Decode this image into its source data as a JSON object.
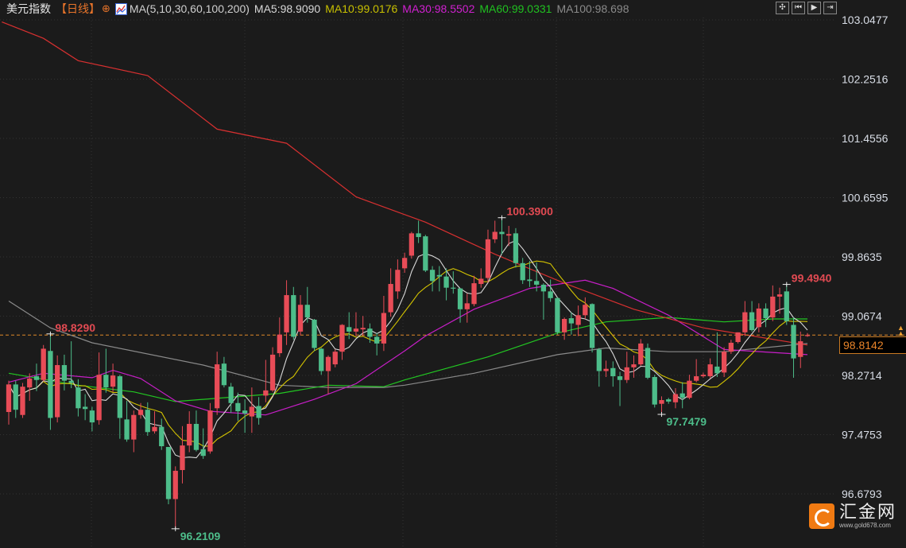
{
  "header": {
    "title": "美元指数",
    "period": "【日线】",
    "add_icon": "circle-plus-icon",
    "ma_icon": "line-chart-icon",
    "ma_params": "MA(5,10,30,60,100,200)",
    "ma5": "MA5:98.9090",
    "ma10": "MA10:99.0176",
    "ma30": "MA30:98.5502",
    "ma60": "MA60:99.0331",
    "ma100": "MA100:98.698"
  },
  "toolbar": [
    {
      "icon": "crosshair-icon",
      "glyph": "✣"
    },
    {
      "icon": "step-back-icon",
      "glyph": "⏮"
    },
    {
      "icon": "play-icon",
      "glyph": "▶"
    },
    {
      "icon": "exit-icon",
      "glyph": "⇥"
    }
  ],
  "current_price": "98.8142",
  "logo": {
    "name": "汇金网",
    "url": "www.gold678.com"
  },
  "colors": {
    "background": "#1b1b1b",
    "up": "#e84c57",
    "down": "#4dbd8a",
    "ma5": "#d8d8d8",
    "ma10": "#d4c400",
    "ma30": "#c81ec8",
    "ma60": "#22c722",
    "ma100": "#8a8a8a",
    "ma200": "#d83030",
    "current_line": "#e08a2a",
    "axis_text": "#d8dde6"
  },
  "chart_data": {
    "type": "candlestick",
    "title": "",
    "ylim": [
      96.1,
      103.1
    ],
    "grid": true,
    "y_ticks": [
      "103.0477",
      "102.2516",
      "101.4556",
      "100.6595",
      "99.8635",
      "99.0674",
      "98.2714",
      "97.4753",
      "96.6793"
    ],
    "current_value": 98.8142,
    "fields": [
      "open",
      "high",
      "low",
      "close"
    ],
    "candles": [
      [
        97.78,
        98.2,
        97.61,
        98.15
      ],
      [
        98.15,
        98.2,
        97.7,
        97.81
      ],
      [
        97.74,
        98.17,
        97.7,
        98.12
      ],
      [
        98.11,
        98.3,
        97.93,
        98.23
      ],
      [
        98.26,
        98.43,
        98.06,
        98.21
      ],
      [
        98.21,
        98.68,
        98.19,
        98.63
      ],
      [
        98.6,
        98.83,
        97.54,
        97.7
      ],
      [
        97.71,
        98.54,
        97.64,
        98.41
      ],
      [
        98.41,
        98.55,
        98.07,
        98.2
      ],
      [
        98.2,
        98.73,
        98.1,
        98.17
      ],
      [
        98.11,
        98.22,
        97.72,
        97.83
      ],
      [
        97.85,
        98.02,
        97.67,
        97.82
      ],
      [
        97.8,
        97.85,
        97.52,
        97.64
      ],
      [
        97.67,
        98.58,
        97.61,
        98.28
      ],
      [
        98.28,
        98.63,
        98.04,
        98.11
      ],
      [
        98.12,
        98.43,
        98.05,
        98.27
      ],
      [
        98.26,
        98.28,
        97.42,
        97.7
      ],
      [
        97.68,
        97.93,
        97.38,
        97.41
      ],
      [
        97.41,
        97.8,
        97.24,
        97.74
      ],
      [
        97.74,
        97.9,
        97.69,
        97.81
      ],
      [
        97.81,
        97.91,
        97.46,
        97.51
      ],
      [
        97.52,
        97.79,
        97.49,
        97.58
      ],
      [
        97.58,
        97.69,
        97.27,
        97.32
      ],
      [
        97.31,
        97.31,
        96.54,
        96.61
      ],
      [
        96.61,
        97.05,
        96.21,
        96.99
      ],
      [
        97.0,
        97.59,
        96.82,
        97.33
      ],
      [
        97.33,
        97.79,
        97.24,
        97.62
      ],
      [
        97.62,
        97.8,
        97.25,
        97.27
      ],
      [
        97.28,
        97.56,
        97.15,
        97.19
      ],
      [
        97.25,
        97.9,
        97.22,
        97.8
      ],
      [
        97.83,
        98.59,
        97.74,
        98.42
      ],
      [
        98.43,
        98.52,
        98.11,
        98.14
      ],
      [
        98.12,
        98.17,
        97.77,
        97.9
      ],
      [
        97.9,
        98.04,
        97.66,
        97.79
      ],
      [
        97.8,
        97.95,
        97.5,
        97.76
      ],
      [
        97.72,
        98.11,
        97.5,
        97.85
      ],
      [
        97.86,
        97.98,
        97.61,
        97.7
      ],
      [
        98.0,
        98.48,
        97.91,
        98.07
      ],
      [
        98.07,
        98.65,
        98.05,
        98.55
      ],
      [
        98.57,
        99.05,
        98.52,
        98.82
      ],
      [
        98.85,
        99.55,
        98.68,
        99.35
      ],
      [
        99.35,
        99.46,
        98.75,
        98.79
      ],
      [
        98.86,
        99.35,
        98.81,
        99.22
      ],
      [
        99.22,
        99.46,
        98.98,
        99.05
      ],
      [
        99.02,
        99.03,
        98.6,
        98.64
      ],
      [
        98.63,
        98.64,
        98.28,
        98.33
      ],
      [
        98.33,
        98.54,
        98.02,
        98.52
      ],
      [
        98.42,
        98.62,
        98.38,
        98.59
      ],
      [
        98.59,
        98.96,
        98.48,
        98.95
      ],
      [
        98.92,
        99.12,
        98.76,
        98.86
      ],
      [
        98.86,
        99.12,
        98.8,
        98.9
      ],
      [
        98.89,
        99.07,
        98.8,
        98.91
      ],
      [
        98.9,
        98.97,
        98.71,
        98.79
      ],
      [
        98.79,
        98.84,
        98.54,
        98.7
      ],
      [
        98.7,
        99.34,
        98.6,
        99.11
      ],
      [
        99.12,
        99.71,
        99.06,
        99.5
      ],
      [
        99.4,
        99.83,
        99.3,
        99.69
      ],
      [
        99.71,
        99.92,
        99.65,
        99.85
      ],
      [
        99.88,
        100.2,
        99.84,
        100.18
      ],
      [
        100.18,
        100.35,
        100.05,
        100.13
      ],
      [
        100.14,
        100.16,
        99.66,
        99.68
      ],
      [
        99.69,
        99.74,
        99.4,
        99.54
      ],
      [
        99.62,
        99.74,
        99.4,
        99.6
      ],
      [
        99.6,
        99.71,
        99.28,
        99.45
      ],
      [
        99.45,
        99.67,
        99.37,
        99.44
      ],
      [
        99.44,
        99.44,
        98.98,
        99.16
      ],
      [
        99.16,
        99.37,
        98.98,
        99.24
      ],
      [
        99.23,
        99.61,
        99.2,
        99.51
      ],
      [
        99.5,
        99.71,
        99.45,
        99.57
      ],
      [
        99.58,
        100.23,
        99.52,
        100.1
      ],
      [
        100.1,
        100.35,
        100.05,
        100.2
      ],
      [
        100.2,
        100.39,
        99.9,
        100.17
      ],
      [
        100.15,
        100.28,
        100.01,
        100.17
      ],
      [
        100.18,
        100.25,
        99.72,
        99.78
      ],
      [
        99.78,
        99.85,
        99.5,
        99.55
      ],
      [
        99.56,
        99.81,
        99.46,
        99.54
      ],
      [
        99.54,
        99.79,
        99.4,
        99.49
      ],
      [
        99.49,
        99.51,
        99.02,
        99.4
      ],
      [
        99.4,
        99.56,
        99.26,
        99.31
      ],
      [
        99.31,
        99.32,
        98.82,
        98.85
      ],
      [
        98.85,
        99.05,
        98.75,
        99.03
      ],
      [
        99.04,
        99.12,
        98.82,
        98.97
      ],
      [
        98.95,
        99.21,
        98.8,
        99.08
      ],
      [
        99.08,
        99.32,
        99.03,
        99.22
      ],
      [
        99.23,
        99.24,
        98.58,
        98.64
      ],
      [
        98.62,
        98.64,
        98.12,
        98.33
      ],
      [
        98.33,
        98.47,
        98.25,
        98.36
      ],
      [
        98.37,
        98.46,
        98.12,
        98.26
      ],
      [
        98.26,
        98.32,
        97.86,
        98.21
      ],
      [
        98.21,
        98.59,
        98.17,
        98.38
      ],
      [
        98.38,
        98.54,
        98.24,
        98.42
      ],
      [
        98.42,
        98.76,
        98.4,
        98.7
      ],
      [
        98.64,
        98.7,
        98.22,
        98.24
      ],
      [
        98.25,
        98.28,
        97.84,
        97.88
      ],
      [
        97.89,
        97.99,
        97.7479,
        97.94
      ],
      [
        97.95,
        97.97,
        97.89,
        97.92
      ],
      [
        97.91,
        98.1,
        97.83,
        98.02
      ],
      [
        98.03,
        98.18,
        97.83,
        97.97
      ],
      [
        97.97,
        98.28,
        97.95,
        98.2
      ],
      [
        98.2,
        98.49,
        98.18,
        98.26
      ],
      [
        98.26,
        98.31,
        98.24,
        98.28
      ],
      [
        98.26,
        98.5,
        98.23,
        98.42
      ],
      [
        98.39,
        98.85,
        98.25,
        98.3
      ],
      [
        98.31,
        98.65,
        98.25,
        98.59
      ],
      [
        98.59,
        98.75,
        98.56,
        98.71
      ],
      [
        98.72,
        98.85,
        98.7,
        98.85
      ],
      [
        98.85,
        99.27,
        98.8,
        99.12
      ],
      [
        99.12,
        99.27,
        98.86,
        98.88
      ],
      [
        98.92,
        99.24,
        98.85,
        99.17
      ],
      [
        99.17,
        99.24,
        98.92,
        99.04
      ],
      [
        99.05,
        99.48,
        99.0,
        99.33
      ],
      [
        99.33,
        99.45,
        99.1,
        99.36
      ],
      [
        99.4,
        99.494,
        98.95,
        99.0
      ],
      [
        98.95,
        99.05,
        98.24,
        98.5
      ],
      [
        98.52,
        98.86,
        98.37,
        98.73
      ],
      [
        98.8,
        98.84,
        98.79,
        98.8142
      ]
    ],
    "ma_lines": {
      "ma30": [
        [
          0,
          98.18
        ],
        [
          5,
          98.3
        ],
        [
          12,
          98.24
        ],
        [
          15,
          98.34
        ],
        [
          19,
          98.23
        ],
        [
          24,
          97.93
        ],
        [
          29,
          97.79
        ],
        [
          37,
          97.74
        ],
        [
          44,
          97.95
        ],
        [
          50,
          98.16
        ],
        [
          57,
          98.6
        ],
        [
          60,
          98.8
        ],
        [
          67,
          99.16
        ],
        [
          75,
          99.44
        ],
        [
          83,
          99.55
        ],
        [
          87,
          99.44
        ],
        [
          95,
          99.08
        ],
        [
          103,
          98.62
        ],
        [
          115,
          98.55
        ]
      ],
      "ma60": [
        [
          0,
          98.3
        ],
        [
          10,
          98.14
        ],
        [
          18,
          98.05
        ],
        [
          24,
          97.92
        ],
        [
          28,
          97.95
        ],
        [
          39,
          98.03
        ],
        [
          46,
          98.14
        ],
        [
          54,
          98.12
        ],
        [
          57,
          98.21
        ],
        [
          69,
          98.52
        ],
        [
          79,
          98.84
        ],
        [
          86,
          98.99
        ],
        [
          95,
          99.05
        ],
        [
          103,
          98.99
        ],
        [
          110,
          99.03
        ],
        [
          115,
          99.03
        ]
      ],
      "ma100": [
        [
          0,
          99.27
        ],
        [
          6,
          98.91
        ],
        [
          12,
          98.71
        ],
        [
          28,
          98.41
        ],
        [
          39,
          98.14
        ],
        [
          46,
          98.11
        ],
        [
          54,
          98.11
        ],
        [
          57,
          98.14
        ],
        [
          67,
          98.3
        ],
        [
          79,
          98.55
        ],
        [
          86,
          98.64
        ],
        [
          95,
          98.59
        ],
        [
          103,
          98.59
        ],
        [
          115,
          98.7
        ]
      ],
      "ma200": [
        [
          -1,
          103.02
        ],
        [
          5,
          102.8
        ],
        [
          10,
          102.5
        ],
        [
          20,
          102.3
        ],
        [
          30,
          101.58
        ],
        [
          40,
          101.39
        ],
        [
          50,
          100.67
        ],
        [
          60,
          100.33
        ],
        [
          70,
          99.9
        ],
        [
          80,
          99.51
        ],
        [
          90,
          99.16
        ],
        [
          100,
          98.91
        ],
        [
          115,
          98.68
        ]
      ]
    },
    "annotations": [
      {
        "label": "98.8290",
        "index": 6,
        "value": 98.829,
        "kind": "high"
      },
      {
        "label": "96.2109",
        "index": 24,
        "value": 96.2109,
        "kind": "low"
      },
      {
        "label": "100.3900",
        "index": 71,
        "value": 100.39,
        "kind": "high"
      },
      {
        "label": "97.7479",
        "index": 94,
        "value": 97.7479,
        "kind": "low"
      },
      {
        "label": "99.4940",
        "index": 112,
        "value": 99.494,
        "kind": "high"
      }
    ]
  }
}
